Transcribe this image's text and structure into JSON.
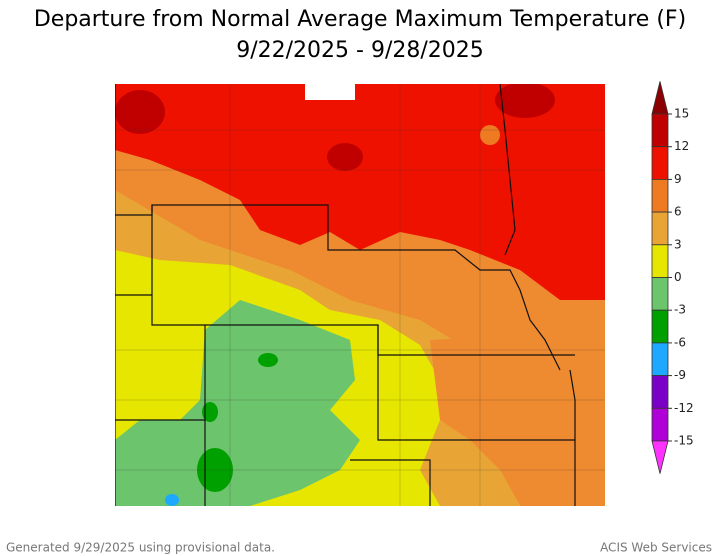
{
  "header": {
    "title": "Departure from Normal Average Maximum Temperature (F)",
    "subtitle": "9/22/2025 - 9/28/2025"
  },
  "legend": {
    "ticks": [
      15,
      12,
      9,
      6,
      3,
      0,
      -3,
      -6,
      -9,
      -12,
      -15
    ],
    "colors": [
      "#8b0000",
      "#c00000",
      "#ee1100",
      "#ee7a22",
      "#e8a535",
      "#e6e600",
      "#6cc46c",
      "#00a000",
      "#1ea8ff",
      "#7a00c8",
      "#b000d8",
      "#ff33ff"
    ]
  },
  "footer": {
    "generated": "Generated 9/29/2025 using provisional data.",
    "credit": "ACIS Web Services"
  }
}
